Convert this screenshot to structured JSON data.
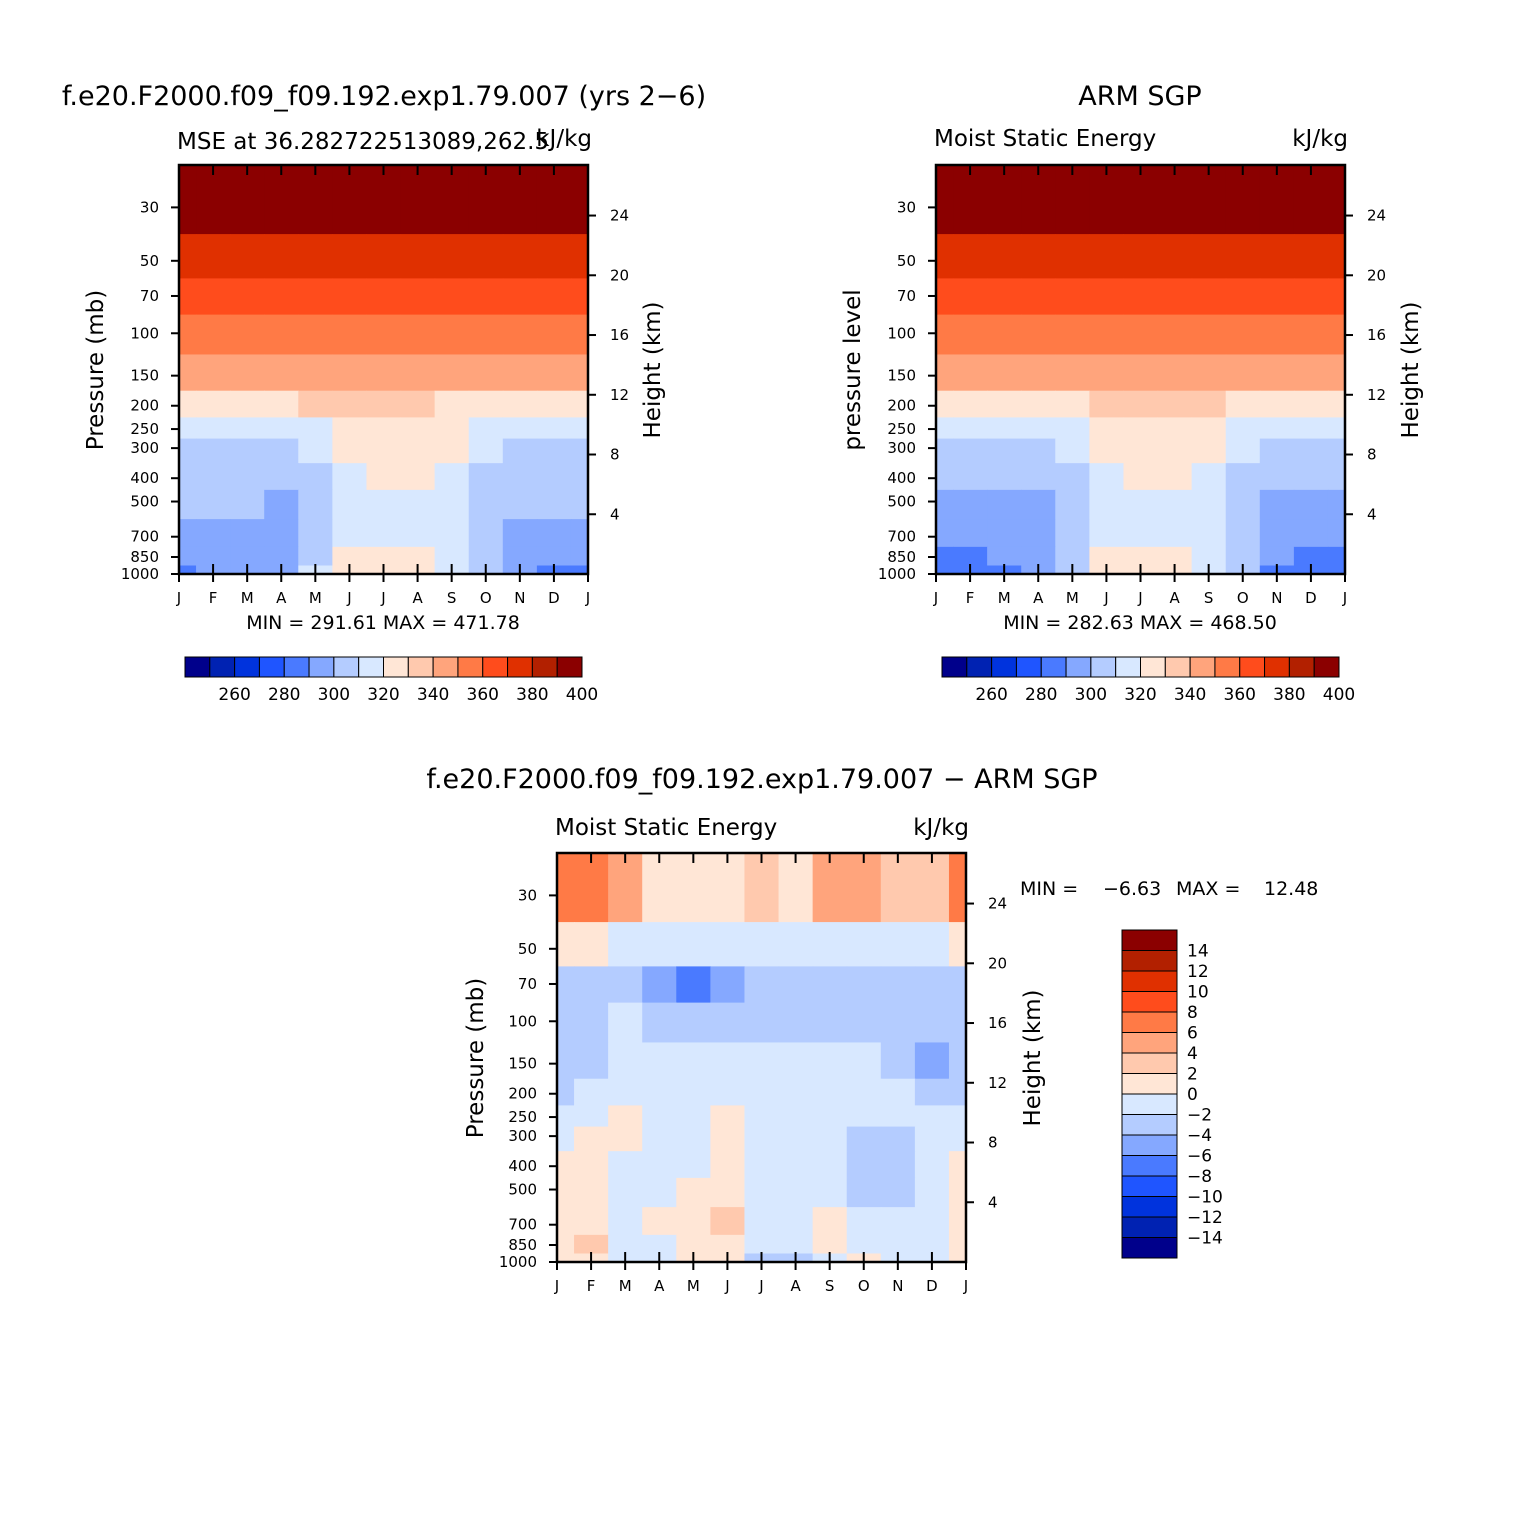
{
  "chart_data": [
    {
      "id": "model",
      "type": "heatmap",
      "title": "f.e20.F2000.f09_f09.192.exp1.79.007 (yrs 2−6)",
      "subtitle_left": "MSE at 36.282722513089,262.5",
      "subtitle_right": "kJ/kg",
      "ylabel": "Pressure (mb)",
      "ylabel_right": "Height (km)",
      "x_ticks": [
        "J",
        "F",
        "M",
        "A",
        "M",
        "J",
        "J",
        "A",
        "S",
        "O",
        "N",
        "D",
        "J"
      ],
      "y_ticks": [
        30,
        50,
        70,
        100,
        150,
        200,
        250,
        300,
        400,
        500,
        700,
        850,
        1000
      ],
      "height_ticks": [
        4,
        8,
        12,
        16,
        20,
        24
      ],
      "min_max_text": "MIN = 291.61 MAX = 471.78",
      "colorbar": {
        "orientation": "horizontal",
        "labels": [
          "260",
          "280",
          "300",
          "320",
          "340",
          "360",
          "380",
          "400"
        ],
        "levels": [
          250,
          260,
          270,
          280,
          290,
          300,
          310,
          320,
          330,
          340,
          350,
          360,
          370,
          380,
          390,
          400,
          410
        ],
        "colors": [
          "#00008b",
          "#0022b2",
          "#0033dd",
          "#1f55ff",
          "#4a7aff",
          "#85a8ff",
          "#b4ccff",
          "#d8e8ff",
          "#ffe6d6",
          "#ffc9ae",
          "#ffa47c",
          "#ff7a46",
          "#ff4c1c",
          "#e03000",
          "#b22000",
          "#8b0000"
        ]
      },
      "matrix": [
        [
          429,
          429,
          429,
          429,
          429,
          429,
          429,
          429,
          429,
          429,
          429,
          429,
          429
        ],
        [
          384,
          384,
          384,
          384,
          384,
          384,
          383,
          383,
          383,
          384,
          384,
          386,
          384
        ],
        [
          376,
          376,
          376,
          375,
          375,
          374,
          373,
          373,
          373,
          374,
          375,
          376,
          376
        ],
        [
          366,
          366,
          366,
          366,
          366,
          366,
          366,
          366,
          366,
          366,
          366,
          366,
          366
        ],
        [
          352,
          352,
          352,
          353,
          353,
          353,
          353,
          353,
          352,
          352,
          352,
          352,
          352
        ],
        [
          336,
          337,
          337,
          336,
          341,
          341,
          340,
          340,
          338,
          335,
          334,
          334,
          336
        ],
        [
          325,
          326,
          325,
          322,
          326,
          333,
          336,
          334,
          332,
          325,
          323,
          326,
          325
        ],
        [
          316,
          317,
          316,
          314,
          320,
          333,
          336,
          335,
          330,
          321,
          316,
          316,
          316
        ],
        [
          314,
          314,
          313,
          311,
          319,
          329,
          334,
          333,
          327,
          318,
          313,
          312,
          314
        ],
        [
          311,
          311,
          310,
          308,
          314,
          323,
          329,
          328,
          322,
          314,
          310,
          310,
          311
        ],
        [
          307,
          307,
          306,
          307,
          314,
          323,
          326,
          327,
          321,
          314,
          308,
          306,
          307
        ],
        [
          301,
          302,
          303,
          306,
          319,
          334,
          338,
          337,
          329,
          317,
          304,
          300,
          301
        ],
        [
          298,
          300,
          302,
          306,
          320,
          334,
          339,
          338,
          328,
          315,
          302,
          297,
          298
        ]
      ]
    },
    {
      "id": "obs",
      "type": "heatmap",
      "title": "ARM SGP",
      "subtitle_left": "Moist Static Energy",
      "subtitle_right": "kJ/kg",
      "ylabel": "pressure level",
      "ylabel_right": "Height (km)",
      "x_ticks": [
        "J",
        "F",
        "M",
        "A",
        "M",
        "J",
        "J",
        "A",
        "S",
        "O",
        "N",
        "D",
        "J"
      ],
      "y_ticks": [
        30,
        50,
        70,
        100,
        150,
        200,
        250,
        300,
        400,
        500,
        700,
        850,
        1000
      ],
      "height_ticks": [
        4,
        8,
        12,
        16,
        20,
        24
      ],
      "min_max_text": "MIN = 282.63 MAX = 468.50",
      "colorbar": {
        "orientation": "horizontal",
        "labels": [
          "260",
          "280",
          "300",
          "320",
          "340",
          "360",
          "380",
          "400"
        ],
        "levels": [
          250,
          260,
          270,
          280,
          290,
          300,
          310,
          320,
          330,
          340,
          350,
          360,
          370,
          380,
          390,
          400,
          410
        ],
        "colors": [
          "#00008b",
          "#0022b2",
          "#0033dd",
          "#1f55ff",
          "#4a7aff",
          "#85a8ff",
          "#b4ccff",
          "#d8e8ff",
          "#ffe6d6",
          "#ffc9ae",
          "#ffa47c",
          "#ff7a46",
          "#ff4c1c",
          "#e03000",
          "#b22000",
          "#8b0000"
        ]
      },
      "matrix": [
        [
          425,
          425,
          425,
          425,
          425,
          425,
          425,
          425,
          425,
          425,
          425,
          425,
          425
        ],
        [
          382,
          382,
          382,
          382,
          382,
          382,
          382,
          382,
          382,
          382,
          382,
          382,
          382
        ],
        [
          374,
          374,
          374,
          374,
          373,
          372,
          371,
          371,
          372,
          373,
          374,
          374,
          374
        ],
        [
          365,
          365,
          365,
          365,
          365,
          365,
          364,
          364,
          365,
          365,
          365,
          365,
          365
        ],
        [
          350,
          351,
          351,
          351,
          352,
          352,
          351,
          351,
          351,
          351,
          351,
          350,
          350
        ],
        [
          336,
          337,
          337,
          336,
          337,
          340,
          343,
          343,
          341,
          337,
          335,
          334,
          336
        ],
        [
          325,
          326,
          325,
          324,
          326,
          332,
          337,
          335,
          331,
          326,
          324,
          325,
          325
        ],
        [
          317,
          317,
          316,
          316,
          322,
          331,
          336,
          335,
          330,
          322,
          318,
          318,
          317
        ],
        [
          312,
          313,
          312,
          312,
          317,
          327,
          333,
          332,
          326,
          317,
          313,
          312,
          312
        ],
        [
          308,
          309,
          308,
          308,
          314,
          322,
          328,
          327,
          321,
          314,
          309,
          308,
          308
        ],
        [
          304,
          305,
          305,
          305,
          312,
          322,
          327,
          326,
          320,
          312,
          305,
          303,
          304
        ],
        [
          298,
          299,
          301,
          304,
          318,
          333,
          338,
          336,
          327,
          313,
          301,
          296,
          298
        ],
        [
          294,
          296,
          299,
          304,
          318,
          333,
          338,
          336,
          326,
          312,
          299,
          292,
          294
        ]
      ]
    },
    {
      "id": "diff",
      "type": "heatmap",
      "title": "f.e20.F2000.f09_f09.192.exp1.79.007 − ARM SGP",
      "subtitle_left": "Moist Static Energy",
      "subtitle_right": "kJ/kg",
      "ylabel": "Pressure (mb)",
      "ylabel_right": "Height (km)",
      "x_ticks": [
        "J",
        "F",
        "M",
        "A",
        "M",
        "J",
        "J",
        "A",
        "S",
        "O",
        "N",
        "D",
        "J"
      ],
      "y_ticks": [
        30,
        50,
        70,
        100,
        150,
        200,
        250,
        300,
        400,
        500,
        700,
        850,
        1000
      ],
      "height_ticks": [
        4,
        8,
        12,
        16,
        20,
        24
      ],
      "min_label": "MIN =",
      "min_value": "−6.63",
      "max_label": "MAX =",
      "max_value": "12.48",
      "colorbar": {
        "orientation": "vertical",
        "labels": [
          "14",
          "12",
          "10",
          "8",
          "6",
          "4",
          "2",
          "0",
          "−2",
          "−4",
          "−6",
          "−8",
          "−10",
          "−12",
          "−14"
        ],
        "levels": [
          -16,
          -14,
          -12,
          -10,
          -8,
          -6,
          -4,
          -2,
          0,
          2,
          4,
          6,
          8,
          10,
          12,
          14,
          16
        ],
        "colors": [
          "#00008b",
          "#0022b2",
          "#0033dd",
          "#1f55ff",
          "#4a7aff",
          "#85a8ff",
          "#b4ccff",
          "#d8e8ff",
          "#ffe6d6",
          "#ffc9ae",
          "#ffa47c",
          "#ff7a46",
          "#ff4c1c",
          "#e03000",
          "#b22000",
          "#8b0000"
        ]
      },
      "matrix": [
        [
          7.5,
          7,
          5,
          1.2,
          0.4,
          1,
          2,
          1,
          4,
          5.5,
          3.5,
          3,
          7.5
        ],
        [
          0.5,
          0.4,
          -0.6,
          -1,
          -2,
          -1.5,
          -1.8,
          -1,
          -0.6,
          -0.5,
          -0.5,
          -0.5,
          0.5
        ],
        [
          -3,
          -3,
          -3,
          -5,
          -7,
          -5,
          -3,
          -3,
          -3.5,
          -3,
          -3,
          -4,
          -3
        ],
        [
          -2.5,
          -2.5,
          -1.8,
          -3,
          -3.5,
          -3,
          -2.5,
          -2.5,
          -2.5,
          -2.5,
          -2.5,
          -3,
          -2.5
        ],
        [
          -3.5,
          -3,
          -2,
          -2,
          -2,
          -1.5,
          -1.5,
          -1.5,
          -1.5,
          -1.5,
          -2.2,
          -4.5,
          -3.5
        ],
        [
          -2.5,
          -1.5,
          -1,
          -1.2,
          -1.5,
          -1,
          -1,
          -1,
          -1,
          -1,
          -1.5,
          -2.5,
          -2.5
        ],
        [
          -1,
          -0.4,
          0.5,
          -1,
          -1.2,
          0.5,
          -1,
          -1,
          -1,
          -1,
          -1,
          -1.5,
          -1
        ],
        [
          -0.5,
          0.3,
          0.5,
          -1,
          -1,
          0.6,
          -0.5,
          -0.5,
          -0.5,
          -2.5,
          -3,
          -1,
          -0.5
        ],
        [
          0.2,
          0.4,
          -0.5,
          -0.8,
          -0.5,
          0.6,
          -0.5,
          -0.5,
          -0.5,
          -3,
          -3,
          -1,
          0.2
        ],
        [
          0.2,
          0.5,
          -0.5,
          -0.8,
          0.3,
          0.6,
          -0.5,
          -0.5,
          -0.5,
          -3,
          -3,
          -1,
          0.2
        ],
        [
          0.5,
          0.5,
          -1,
          0.3,
          1.5,
          2.5,
          -0.5,
          -0.8,
          1.5,
          -2,
          -1,
          -1,
          0.5
        ],
        [
          0.5,
          2,
          -2,
          -1,
          0.5,
          1.5,
          -1.5,
          -2,
          0.6,
          -0.5,
          -1,
          -1,
          0.5
        ],
        [
          0.2,
          0.5,
          -1,
          -1,
          0.5,
          0.8,
          -4,
          -4,
          -0.5,
          0,
          -0.5,
          -0.6,
          0.2
        ]
      ]
    }
  ]
}
